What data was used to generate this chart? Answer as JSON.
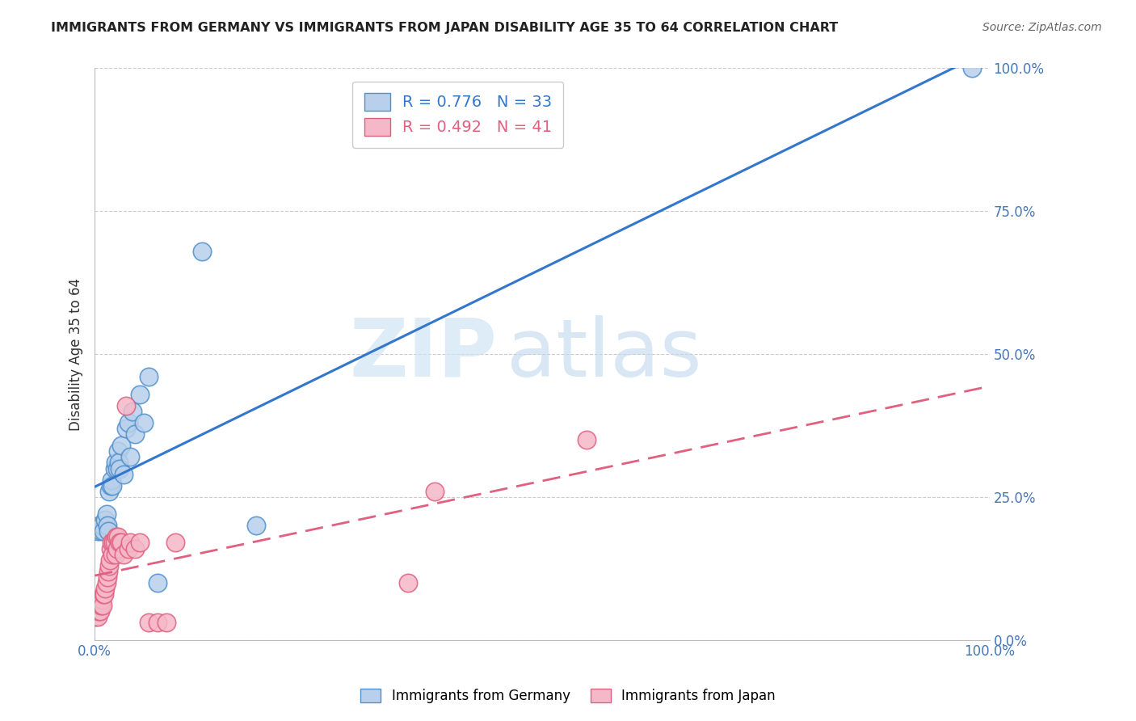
{
  "title": "IMMIGRANTS FROM GERMANY VS IMMIGRANTS FROM JAPAN DISABILITY AGE 35 TO 64 CORRELATION CHART",
  "source": "Source: ZipAtlas.com",
  "ylabel": "Disability Age 35 to 64",
  "xlim": [
    0,
    1.0
  ],
  "ylim": [
    0,
    1.0
  ],
  "ytick_labels": [
    "0.0%",
    "25.0%",
    "50.0%",
    "75.0%",
    "100.0%"
  ],
  "ytick_positions": [
    0.0,
    0.25,
    0.5,
    0.75,
    1.0
  ],
  "watermark_zip": "ZIP",
  "watermark_atlas": "atlas",
  "germany_R": 0.776,
  "germany_N": 33,
  "japan_R": 0.492,
  "japan_N": 41,
  "germany_fill": "#b8d0eb",
  "japan_fill": "#f5b8c8",
  "germany_edge": "#5090cc",
  "japan_edge": "#e06080",
  "germany_line_color": "#3377cc",
  "japan_line_color": "#e06080",
  "germany_scatter_x": [
    0.003,
    0.005,
    0.007,
    0.008,
    0.01,
    0.012,
    0.013,
    0.014,
    0.015,
    0.016,
    0.018,
    0.019,
    0.02,
    0.022,
    0.023,
    0.025,
    0.026,
    0.027,
    0.028,
    0.03,
    0.032,
    0.035,
    0.038,
    0.04,
    0.042,
    0.045,
    0.05,
    0.055,
    0.06,
    0.07,
    0.12,
    0.18,
    0.98
  ],
  "germany_scatter_y": [
    0.19,
    0.2,
    0.19,
    0.2,
    0.19,
    0.21,
    0.22,
    0.2,
    0.19,
    0.26,
    0.27,
    0.28,
    0.27,
    0.3,
    0.31,
    0.3,
    0.33,
    0.31,
    0.3,
    0.34,
    0.29,
    0.37,
    0.38,
    0.32,
    0.4,
    0.36,
    0.43,
    0.38,
    0.46,
    0.1,
    0.68,
    0.2,
    1.0
  ],
  "japan_scatter_x": [
    0.001,
    0.002,
    0.003,
    0.004,
    0.005,
    0.006,
    0.007,
    0.008,
    0.009,
    0.01,
    0.011,
    0.012,
    0.013,
    0.014,
    0.015,
    0.016,
    0.017,
    0.018,
    0.019,
    0.02,
    0.021,
    0.022,
    0.023,
    0.024,
    0.025,
    0.026,
    0.028,
    0.03,
    0.032,
    0.035,
    0.038,
    0.04,
    0.045,
    0.05,
    0.06,
    0.07,
    0.08,
    0.09,
    0.35,
    0.38,
    0.55
  ],
  "japan_scatter_y": [
    0.04,
    0.05,
    0.04,
    0.05,
    0.06,
    0.05,
    0.06,
    0.07,
    0.06,
    0.08,
    0.08,
    0.09,
    0.1,
    0.11,
    0.12,
    0.13,
    0.14,
    0.16,
    0.17,
    0.15,
    0.17,
    0.17,
    0.15,
    0.18,
    0.16,
    0.18,
    0.17,
    0.17,
    0.15,
    0.41,
    0.16,
    0.17,
    0.16,
    0.17,
    0.03,
    0.03,
    0.03,
    0.17,
    0.1,
    0.26,
    0.35
  ],
  "background_color": "#ffffff",
  "grid_color": "#cccccc"
}
